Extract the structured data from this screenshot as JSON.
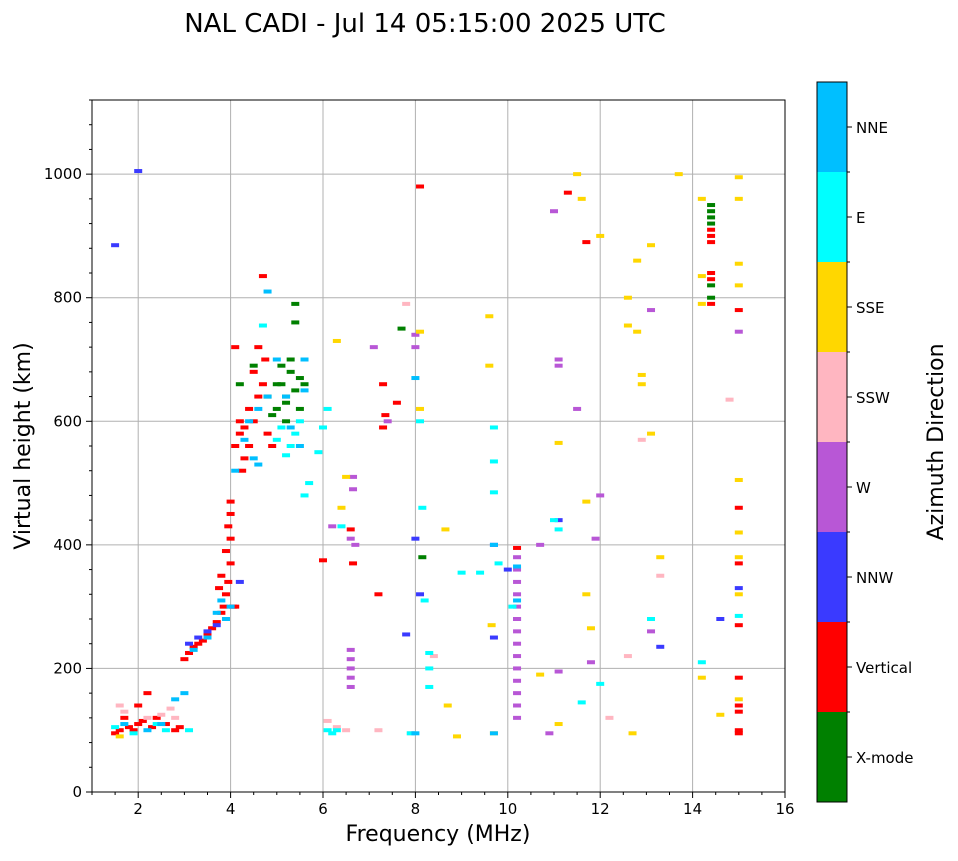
{
  "chart_data": {
    "type": "scatter",
    "title": "NAL CADI - Jul 14 05:15:00 2025 UTC",
    "xlabel": "Frequency (MHz)",
    "ylabel": "Virtual height (km)",
    "xlim": [
      1,
      16
    ],
    "ylim": [
      0,
      1120
    ],
    "xticks": [
      2,
      4,
      6,
      8,
      10,
      12,
      14,
      16
    ],
    "yticks": [
      0,
      200,
      400,
      600,
      800,
      1000
    ],
    "grid": true,
    "colorbar": {
      "label": "Azimuth Direction",
      "categories": [
        {
          "name": "X-mode",
          "color": "#008000"
        },
        {
          "name": "Vertical",
          "color": "#ff0000"
        },
        {
          "name": "NNW",
          "color": "#3a3aff"
        },
        {
          "name": "W",
          "color": "#b857d6"
        },
        {
          "name": "SSW",
          "color": "#ffb6c1"
        },
        {
          "name": "SSE",
          "color": "#ffd700"
        },
        {
          "name": "E",
          "color": "#00ffff"
        },
        {
          "name": "NNE",
          "color": "#00bfff"
        }
      ]
    },
    "series": [
      {
        "name": "X-mode",
        "color": "#008000",
        "points": [
          [
            4.8,
            640
          ],
          [
            5.0,
            660
          ],
          [
            5.1,
            690
          ],
          [
            5.2,
            630
          ],
          [
            5.3,
            680
          ],
          [
            5.4,
            650
          ],
          [
            5.5,
            620
          ],
          [
            5.2,
            600
          ],
          [
            5.0,
            620
          ],
          [
            5.3,
            700
          ],
          [
            5.4,
            760
          ],
          [
            5.4,
            790
          ],
          [
            4.9,
            610
          ],
          [
            5.1,
            660
          ],
          [
            5.5,
            670
          ],
          [
            7.7,
            750
          ],
          [
            8.15,
            380
          ],
          [
            14.4,
            950
          ],
          [
            14.4,
            940
          ],
          [
            14.4,
            930
          ],
          [
            14.4,
            920
          ],
          [
            14.4,
            800
          ],
          [
            14.4,
            820
          ],
          [
            4.2,
            660
          ],
          [
            4.5,
            690
          ],
          [
            5.6,
            660
          ],
          [
            5.2,
            640
          ]
        ]
      },
      {
        "name": "Vertical",
        "color": "#ff0000",
        "points": [
          [
            1.5,
            95
          ],
          [
            1.6,
            100
          ],
          [
            1.8,
            105
          ],
          [
            1.9,
            100
          ],
          [
            2.0,
            110
          ],
          [
            2.1,
            115
          ],
          [
            2.3,
            105
          ],
          [
            2.4,
            120
          ],
          [
            2.6,
            110
          ],
          [
            2.8,
            100
          ],
          [
            2.9,
            105
          ],
          [
            2.2,
            160
          ],
          [
            2.0,
            140
          ],
          [
            1.7,
            120
          ],
          [
            3.0,
            215
          ],
          [
            3.1,
            225
          ],
          [
            3.2,
            235
          ],
          [
            3.3,
            240
          ],
          [
            3.4,
            245
          ],
          [
            3.5,
            255
          ],
          [
            3.6,
            265
          ],
          [
            3.7,
            275
          ],
          [
            3.8,
            290
          ],
          [
            3.85,
            300
          ],
          [
            3.9,
            320
          ],
          [
            3.95,
            340
          ],
          [
            4.0,
            370
          ],
          [
            3.9,
            390
          ],
          [
            4.0,
            410
          ],
          [
            3.95,
            430
          ],
          [
            4.0,
            450
          ],
          [
            4.0,
            470
          ],
          [
            4.05,
            300
          ],
          [
            3.75,
            330
          ],
          [
            3.8,
            350
          ],
          [
            4.1,
            300
          ],
          [
            4.1,
            560
          ],
          [
            4.2,
            580
          ],
          [
            4.3,
            590
          ],
          [
            4.25,
            520
          ],
          [
            4.3,
            540
          ],
          [
            4.4,
            620
          ],
          [
            4.5,
            600
          ],
          [
            4.6,
            640
          ],
          [
            4.7,
            660
          ],
          [
            4.75,
            700
          ],
          [
            4.6,
            720
          ],
          [
            4.1,
            720
          ],
          [
            4.8,
            580
          ],
          [
            4.9,
            560
          ],
          [
            4.4,
            560
          ],
          [
            4.2,
            600
          ],
          [
            4.7,
            835
          ],
          [
            4.5,
            680
          ],
          [
            6.0,
            375
          ],
          [
            6.6,
            425
          ],
          [
            6.65,
            370
          ],
          [
            7.2,
            320
          ],
          [
            7.3,
            590
          ],
          [
            7.3,
            660
          ],
          [
            7.35,
            610
          ],
          [
            7.6,
            630
          ],
          [
            8.1,
            980
          ],
          [
            10.2,
            395
          ],
          [
            11.3,
            970
          ],
          [
            11.7,
            890
          ],
          [
            14.4,
            900
          ],
          [
            14.4,
            890
          ],
          [
            14.4,
            910
          ],
          [
            14.4,
            830
          ],
          [
            14.4,
            840
          ],
          [
            14.4,
            790
          ],
          [
            15.0,
            780
          ],
          [
            15.0,
            460
          ],
          [
            15.0,
            270
          ],
          [
            15.0,
            100
          ],
          [
            15.0,
            95
          ],
          [
            15.0,
            140
          ],
          [
            15.0,
            130
          ],
          [
            15.0,
            185
          ],
          [
            15.0,
            370
          ]
        ]
      },
      {
        "name": "NNW",
        "color": "#3a3aff",
        "points": [
          [
            1.5,
            885
          ],
          [
            2.0,
            1005
          ],
          [
            3.1,
            240
          ],
          [
            3.3,
            250
          ],
          [
            3.5,
            260
          ],
          [
            3.7,
            270
          ],
          [
            4.2,
            340
          ],
          [
            8.0,
            410
          ],
          [
            8.1,
            320
          ],
          [
            9.7,
            250
          ],
          [
            9.7,
            400
          ],
          [
            10.0,
            360
          ],
          [
            10.2,
            280
          ],
          [
            11.1,
            440
          ],
          [
            14.6,
            280
          ],
          [
            15.0,
            330
          ],
          [
            13.3,
            235
          ],
          [
            7.8,
            255
          ]
        ]
      },
      {
        "name": "W",
        "color": "#b857d6",
        "points": [
          [
            6.6,
            230
          ],
          [
            6.6,
            215
          ],
          [
            6.6,
            200
          ],
          [
            6.6,
            185
          ],
          [
            6.6,
            170
          ],
          [
            6.6,
            410
          ],
          [
            6.65,
            510
          ],
          [
            6.65,
            490
          ],
          [
            6.7,
            400
          ],
          [
            6.2,
            430
          ],
          [
            10.2,
            380
          ],
          [
            10.2,
            360
          ],
          [
            10.2,
            340
          ],
          [
            10.2,
            320
          ],
          [
            10.2,
            300
          ],
          [
            10.2,
            280
          ],
          [
            10.2,
            260
          ],
          [
            10.2,
            240
          ],
          [
            10.2,
            220
          ],
          [
            10.2,
            200
          ],
          [
            10.2,
            180
          ],
          [
            10.2,
            160
          ],
          [
            10.2,
            140
          ],
          [
            10.2,
            120
          ],
          [
            10.7,
            400
          ],
          [
            10.9,
            95
          ],
          [
            11.1,
            195
          ],
          [
            11.1,
            690
          ],
          [
            11.1,
            700
          ],
          [
            11.0,
            940
          ],
          [
            11.5,
            620
          ],
          [
            11.9,
            410
          ],
          [
            12.0,
            480
          ],
          [
            13.1,
            260
          ],
          [
            13.1,
            780
          ],
          [
            15.0,
            745
          ],
          [
            11.8,
            210
          ],
          [
            7.1,
            720
          ],
          [
            7.4,
            600
          ],
          [
            8.0,
            740
          ],
          [
            8.0,
            720
          ]
        ]
      },
      {
        "name": "SSW",
        "color": "#ffb6c1",
        "points": [
          [
            1.6,
            140
          ],
          [
            1.7,
            130
          ],
          [
            2.2,
            120
          ],
          [
            2.5,
            125
          ],
          [
            2.7,
            135
          ],
          [
            2.8,
            120
          ],
          [
            6.1,
            115
          ],
          [
            6.3,
            105
          ],
          [
            6.5,
            100
          ],
          [
            7.2,
            100
          ],
          [
            7.9,
            95
          ],
          [
            8.4,
            220
          ],
          [
            12.6,
            220
          ],
          [
            12.9,
            570
          ],
          [
            13.3,
            350
          ],
          [
            14.8,
            635
          ],
          [
            12.2,
            120
          ],
          [
            7.8,
            790
          ]
        ]
      },
      {
        "name": "SSE",
        "color": "#ffd700",
        "points": [
          [
            1.6,
            90
          ],
          [
            6.3,
            730
          ],
          [
            6.4,
            460
          ],
          [
            6.5,
            510
          ],
          [
            8.1,
            620
          ],
          [
            8.1,
            745
          ],
          [
            8.65,
            425
          ],
          [
            8.7,
            140
          ],
          [
            8.9,
            90
          ],
          [
            9.6,
            770
          ],
          [
            9.6,
            690
          ],
          [
            9.65,
            270
          ],
          [
            9.7,
            95
          ],
          [
            10.7,
            190
          ],
          [
            11.1,
            110
          ],
          [
            11.1,
            565
          ],
          [
            11.5,
            1000
          ],
          [
            11.6,
            960
          ],
          [
            11.7,
            470
          ],
          [
            11.7,
            320
          ],
          [
            11.8,
            265
          ],
          [
            12.0,
            900
          ],
          [
            12.6,
            800
          ],
          [
            12.6,
            755
          ],
          [
            12.7,
            95
          ],
          [
            12.8,
            860
          ],
          [
            12.8,
            745
          ],
          [
            12.9,
            660
          ],
          [
            12.9,
            675
          ],
          [
            13.1,
            580
          ],
          [
            13.1,
            885
          ],
          [
            13.3,
            380
          ],
          [
            13.7,
            1000
          ],
          [
            14.2,
            960
          ],
          [
            14.2,
            790
          ],
          [
            14.2,
            835
          ],
          [
            14.2,
            185
          ],
          [
            14.6,
            125
          ],
          [
            15.0,
            995
          ],
          [
            15.0,
            960
          ],
          [
            15.0,
            855
          ],
          [
            15.0,
            820
          ],
          [
            15.0,
            505
          ],
          [
            15.0,
            420
          ],
          [
            15.0,
            380
          ],
          [
            15.0,
            320
          ],
          [
            15.0,
            150
          ]
        ]
      },
      {
        "name": "E",
        "color": "#00ffff",
        "points": [
          [
            1.5,
            105
          ],
          [
            1.9,
            95
          ],
          [
            2.4,
            110
          ],
          [
            2.6,
            100
          ],
          [
            3.1,
            100
          ],
          [
            5.0,
            570
          ],
          [
            5.1,
            590
          ],
          [
            5.3,
            560
          ],
          [
            5.4,
            580
          ],
          [
            5.5,
            600
          ],
          [
            5.6,
            480
          ],
          [
            5.7,
            500
          ],
          [
            5.9,
            550
          ],
          [
            6.0,
            590
          ],
          [
            6.1,
            620
          ],
          [
            5.2,
            545
          ],
          [
            6.1,
            100
          ],
          [
            6.2,
            95
          ],
          [
            6.3,
            100
          ],
          [
            6.4,
            430
          ],
          [
            8.1,
            600
          ],
          [
            8.15,
            460
          ],
          [
            8.2,
            310
          ],
          [
            8.3,
            225
          ],
          [
            8.3,
            200
          ],
          [
            8.3,
            170
          ],
          [
            9.0,
            355
          ],
          [
            9.4,
            355
          ],
          [
            9.7,
            590
          ],
          [
            9.7,
            535
          ],
          [
            9.7,
            485
          ],
          [
            9.8,
            370
          ],
          [
            10.1,
            300
          ],
          [
            11.0,
            440
          ],
          [
            11.1,
            425
          ],
          [
            11.6,
            145
          ],
          [
            12.0,
            175
          ],
          [
            13.1,
            280
          ],
          [
            14.2,
            210
          ],
          [
            15.0,
            285
          ],
          [
            4.7,
            755
          ],
          [
            7.9,
            95
          ]
        ]
      },
      {
        "name": "NNE",
        "color": "#00bfff",
        "points": [
          [
            1.7,
            110
          ],
          [
            2.2,
            100
          ],
          [
            2.5,
            110
          ],
          [
            2.8,
            150
          ],
          [
            3.0,
            160
          ],
          [
            3.2,
            230
          ],
          [
            3.5,
            250
          ],
          [
            3.7,
            290
          ],
          [
            3.8,
            310
          ],
          [
            3.9,
            280
          ],
          [
            4.0,
            300
          ],
          [
            4.1,
            520
          ],
          [
            4.3,
            570
          ],
          [
            4.5,
            540
          ],
          [
            4.6,
            620
          ],
          [
            4.8,
            640
          ],
          [
            4.8,
            810
          ],
          [
            5.0,
            700
          ],
          [
            5.2,
            640
          ],
          [
            5.3,
            590
          ],
          [
            5.5,
            560
          ],
          [
            5.6,
            650
          ],
          [
            5.6,
            700
          ],
          [
            4.6,
            530
          ],
          [
            4.4,
            600
          ],
          [
            8.0,
            670
          ],
          [
            9.7,
            400
          ],
          [
            10.2,
            310
          ],
          [
            10.2,
            365
          ],
          [
            9.7,
            95
          ],
          [
            8.0,
            95
          ]
        ]
      }
    ]
  }
}
